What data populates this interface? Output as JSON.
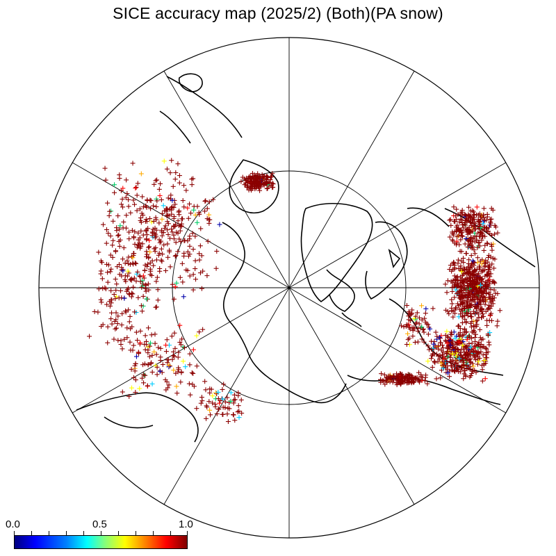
{
  "title": "SICE accuracy map (2025/2) (Both)(PA snow)",
  "colorbar": {
    "min_label": "0.0",
    "mid_label": "0.5",
    "max_label": "1.0"
  },
  "colors": {
    "dominant_marker": "#8b0000",
    "accent_markers": [
      "#0000aa",
      "#00ccff",
      "#ffaa00",
      "#ff0000",
      "#00cc66",
      "#ffff00"
    ]
  },
  "map": {
    "projection": "north-polar-stereographic",
    "meridian_lines": 12,
    "parallel_circle": true
  }
}
